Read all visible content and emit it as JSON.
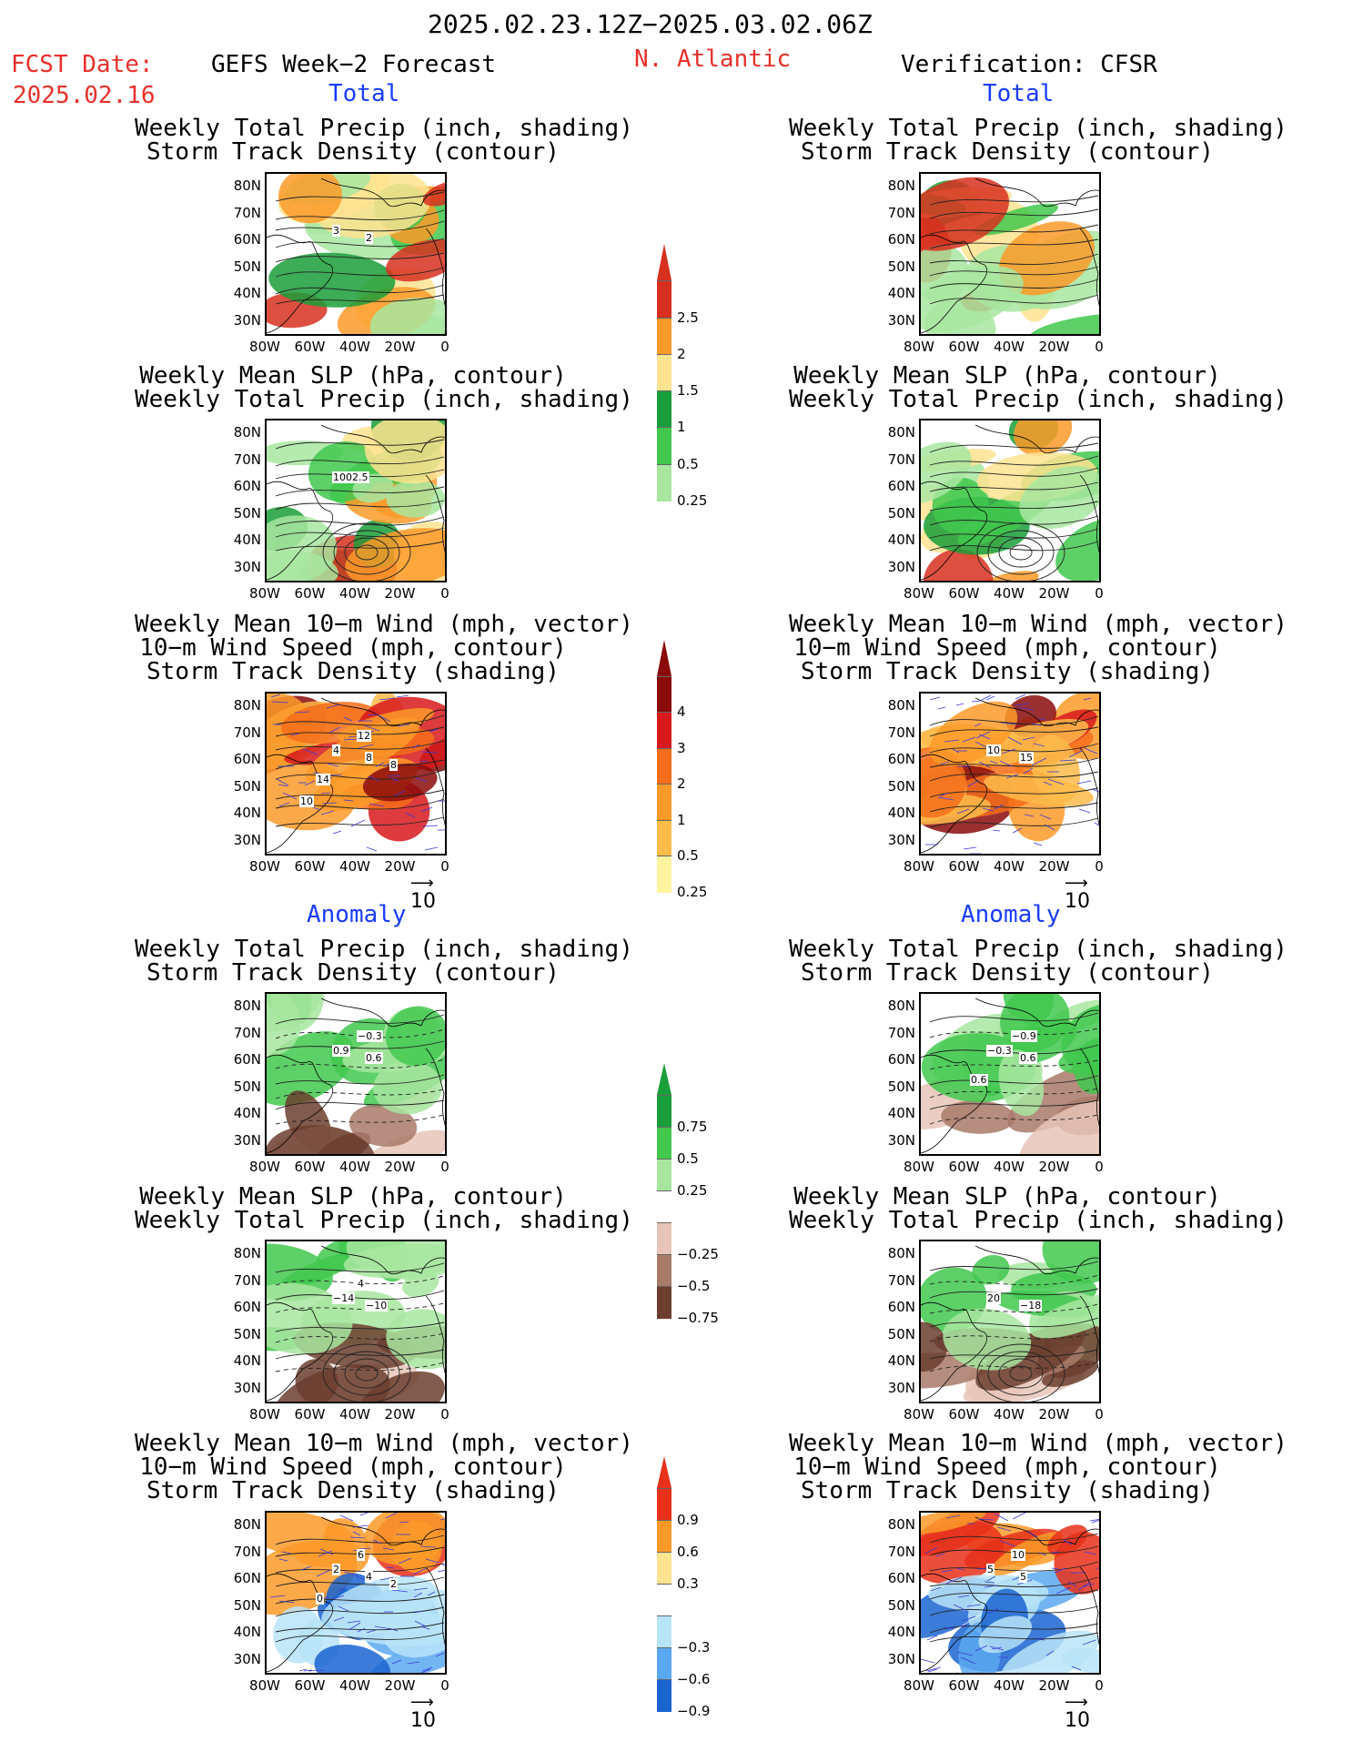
{
  "header": {
    "date_range": "2025.02.23.12Z−2025.03.02.06Z",
    "fcst_label": "FCST Date:",
    "fcst_date": "2025.02.16",
    "left_title": "GEFS Week−2 Forecast",
    "region": "N. Atlantic",
    "right_title": "Verification: CFSR"
  },
  "sections": {
    "total_label": "Total",
    "anomaly_label": "Anomaly"
  },
  "panel_titles": {
    "precip_track": [
      "Weekly Total Precip (inch, shading)",
      "Storm Track Density (contour)"
    ],
    "slp_precip": [
      "Weekly Mean SLP (hPa, contour)",
      "Weekly Total Precip (inch, shading)"
    ],
    "wind_track": [
      "Weekly Mean 10−m Wind (mph, vector)",
      "10−m Wind Speed (mph, contour)",
      "Storm Track Density (shading)"
    ]
  },
  "axes": {
    "lat_labels": [
      "80N",
      "70N",
      "60N",
      "50N",
      "40N",
      "30N"
    ],
    "lon_labels": [
      "80W",
      "60W",
      "40W",
      "20W",
      "0"
    ]
  },
  "vector_ref": "10",
  "colorbars": {
    "precip_total": {
      "labels": [
        "2.5",
        "2",
        "1.5",
        "1",
        "0.5",
        "0.25"
      ],
      "colors": [
        "#d7301f",
        "#fb9a29",
        "#fee391",
        "#1a9e3a",
        "#41c84d",
        "#a8e6a0"
      ]
    },
    "track_total": {
      "labels": [
        "4",
        "3",
        "2",
        "1",
        "0.5",
        "0.25"
      ],
      "colors": [
        "#8b0a0a",
        "#d7191c",
        "#f46d1a",
        "#fb9a29",
        "#fdbb4a",
        "#fff3a0"
      ]
    },
    "precip_anom": {
      "labels": [
        "0.75",
        "0.5",
        "0.25",
        "−0.25",
        "−0.5",
        "−0.75"
      ],
      "colors": [
        "#1a9e3a",
        "#41c84d",
        "#a8e6a0",
        "#ffffff",
        "#e8c4b8",
        "#a87a68",
        "#6b3e2e"
      ]
    },
    "track_anom": {
      "labels": [
        "0.9",
        "0.6",
        "0.3",
        "−0.3",
        "−0.6",
        "−0.9"
      ],
      "colors": [
        "#e8301a",
        "#fb9a29",
        "#fee391",
        "#ffffff",
        "#b8e4f8",
        "#5aa8f0",
        "#1a64d0"
      ]
    }
  },
  "contour_labels": {
    "l1": [
      "3",
      "2"
    ],
    "l2": [
      "1002.5"
    ],
    "l3": [
      "4",
      "8",
      "12",
      "14",
      "8",
      "10"
    ],
    "l4": [
      "0.9",
      "0.6",
      "−0.3"
    ],
    "l5": [
      "−14",
      "−10",
      "4"
    ],
    "l6": [
      "2",
      "4",
      "6",
      "0",
      "2"
    ],
    "r1": [],
    "r2": [],
    "r3": [
      "10",
      "15"
    ],
    "r4": [
      "−0.3",
      "0.6",
      "−0.9",
      "0.6"
    ],
    "r5": [
      "20",
      "−18"
    ],
    "r6": [
      "5",
      "5",
      "10"
    ]
  }
}
